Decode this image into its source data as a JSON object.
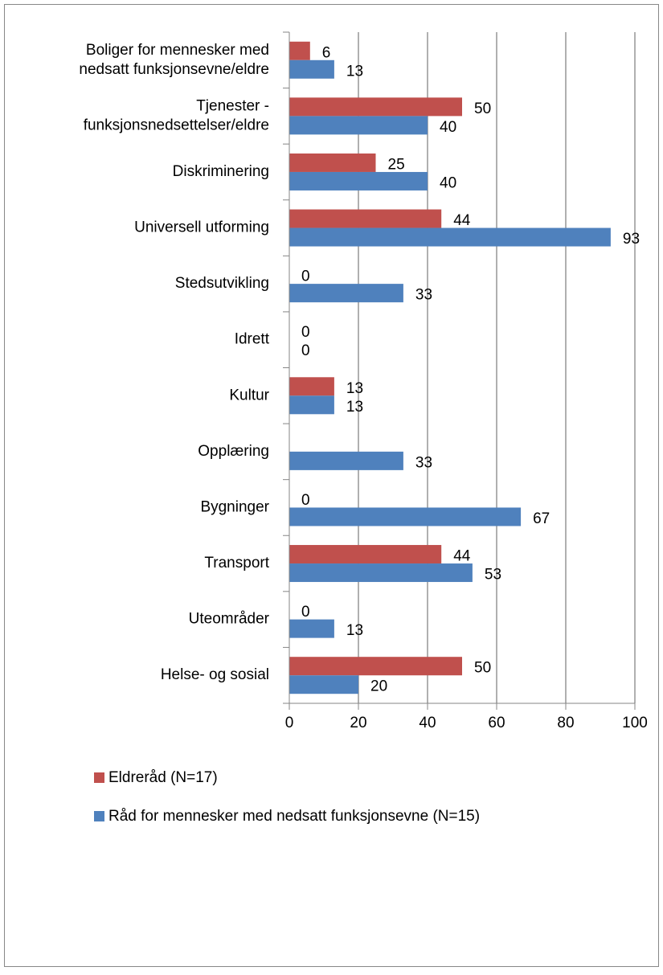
{
  "chart_data": {
    "type": "bar",
    "orientation": "horizontal",
    "categories": [
      "Boliger for mennesker med\nnedsatt funksjonsevne/eldre",
      "Tjenester -\nfunksjonsnedsettelser/eldre",
      "Diskriminering",
      "Universell utforming",
      "Stedsutvikling",
      "Idrett",
      "Kultur",
      "Opplæring",
      "Bygninger",
      "Transport",
      "Uteområder",
      "Helse- og sosial"
    ],
    "series": [
      {
        "name": "Eldreråd (N=17)",
        "color": "#c0504d",
        "values": [
          6,
          50,
          25,
          44,
          0,
          0,
          13,
          null,
          0,
          44,
          0,
          50
        ]
      },
      {
        "name": "Råd for mennesker med nedsatt funksjonsevne (N=15)",
        "color": "#4f81bd",
        "values": [
          13,
          40,
          40,
          93,
          33,
          0,
          13,
          33,
          67,
          53,
          13,
          20
        ]
      }
    ],
    "xlim": [
      0,
      100
    ],
    "xticks": [
      0,
      20,
      40,
      60,
      80,
      100
    ],
    "grid": true,
    "legend": "bottom"
  }
}
